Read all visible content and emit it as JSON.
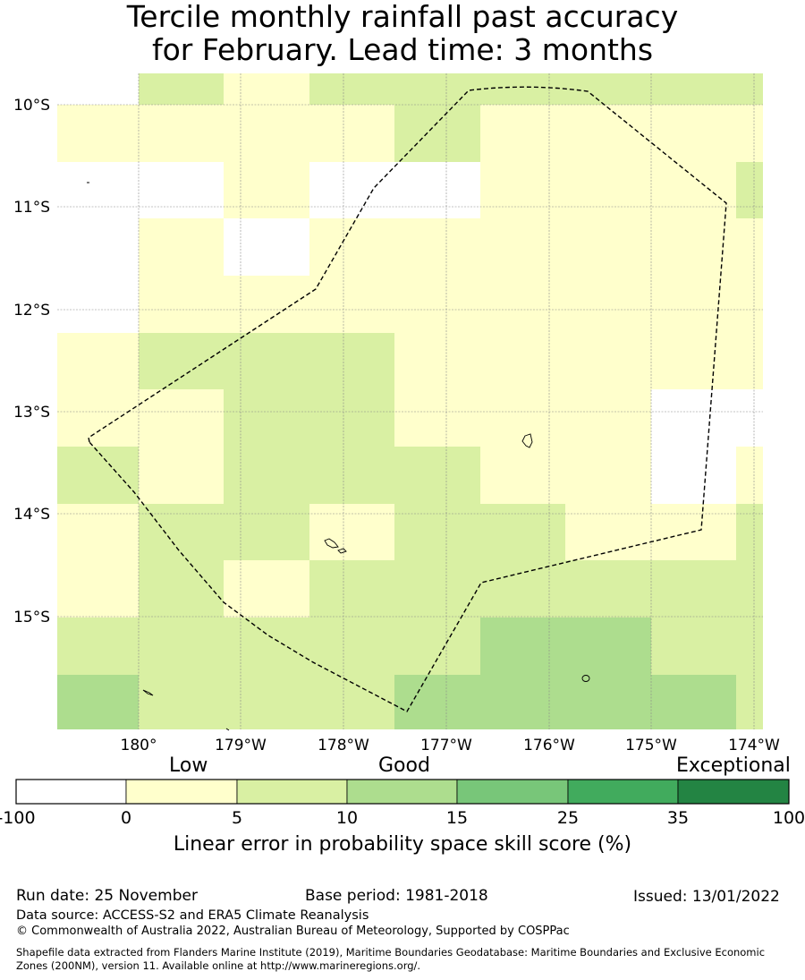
{
  "title": {
    "line1": "Tercile monthly rainfall past accuracy",
    "line2": "for February. Lead time: 3 months"
  },
  "map": {
    "lat_labels": [
      "10°S",
      "11°S",
      "12°S",
      "13°S",
      "14°S",
      "15°S"
    ],
    "lon_labels": [
      "180°",
      "179°W",
      "178°W",
      "177°W",
      "176°W",
      "175°W",
      "174°W"
    ],
    "classes": [
      "white",
      "pale-yellow",
      "light-green",
      "green"
    ],
    "class_colors": {
      "white": "#ffffff",
      "pale-yellow": "#ffffcc",
      "light-green": "#d9f0a3",
      "green": "#addd8e"
    },
    "grid": [
      [
        "white",
        "light-green",
        "pale-yellow",
        "light-green",
        "light-green",
        "light-green",
        "light-green",
        "light-green",
        "light-green"
      ],
      [
        "pale-yellow",
        "pale-yellow",
        "pale-yellow",
        "pale-yellow",
        "light-green",
        "pale-yellow",
        "pale-yellow",
        "pale-yellow",
        "pale-yellow"
      ],
      [
        "white",
        "white",
        "pale-yellow",
        "white",
        "white",
        "pale-yellow",
        "pale-yellow",
        "pale-yellow",
        "light-green"
      ],
      [
        "white",
        "pale-yellow",
        "white",
        "pale-yellow",
        "pale-yellow",
        "pale-yellow",
        "pale-yellow",
        "pale-yellow",
        "pale-yellow"
      ],
      [
        "white",
        "pale-yellow",
        "pale-yellow",
        "pale-yellow",
        "pale-yellow",
        "pale-yellow",
        "pale-yellow",
        "pale-yellow",
        "pale-yellow"
      ],
      [
        "pale-yellow",
        "light-green",
        "light-green",
        "light-green",
        "pale-yellow",
        "pale-yellow",
        "pale-yellow",
        "pale-yellow",
        "pale-yellow"
      ],
      [
        "pale-yellow",
        "pale-yellow",
        "light-green",
        "light-green",
        "pale-yellow",
        "pale-yellow",
        "pale-yellow",
        "white",
        "white"
      ],
      [
        "light-green",
        "pale-yellow",
        "light-green",
        "light-green",
        "light-green",
        "pale-yellow",
        "pale-yellow",
        "white",
        "pale-yellow"
      ],
      [
        "pale-yellow",
        "light-green",
        "light-green",
        "pale-yellow",
        "light-green",
        "light-green",
        "pale-yellow",
        "pale-yellow",
        "light-green"
      ],
      [
        "pale-yellow",
        "light-green",
        "pale-yellow",
        "light-green",
        "light-green",
        "light-green",
        "light-green",
        "light-green",
        "light-green"
      ],
      [
        "light-green",
        "light-green",
        "light-green",
        "light-green",
        "light-green",
        "green",
        "green",
        "light-green",
        "light-green"
      ],
      [
        "green",
        "light-green",
        "light-green",
        "light-green",
        "green",
        "green",
        "green",
        "green",
        "light-green"
      ]
    ]
  },
  "colorbar": {
    "category_labels": [
      "Low",
      "Good",
      "Exceptional"
    ],
    "colors": [
      "#ffffff",
      "#ffffcc",
      "#d9f0a3",
      "#addd8e",
      "#78c679",
      "#41ab5d",
      "#238443"
    ],
    "ticks": [
      "-100",
      "0",
      "5",
      "10",
      "15",
      "25",
      "35",
      "100"
    ],
    "label": "Linear error in probability space skill score (%)"
  },
  "footer": {
    "run_date": "Run date: 25 November",
    "base_period": "Base period: 1981-2018",
    "issued": "Issued: 13/01/2022",
    "data_source": "Data source: ACCESS-S2 and ERA5 Climate Reanalysis",
    "copyright": "© Commonwealth of Australia 2022, Australian Bureau of Meteorology, Supported by COSPPac",
    "shapefile_line1": "Shapefile data extracted from Flanders Marine Institute (2019), Maritime Boundaries Geodatabase: Maritime Boundaries and Exclusive Economic",
    "shapefile_line2": "Zones (200NM), version 11. Available online at http://www.marineregions.org/."
  }
}
